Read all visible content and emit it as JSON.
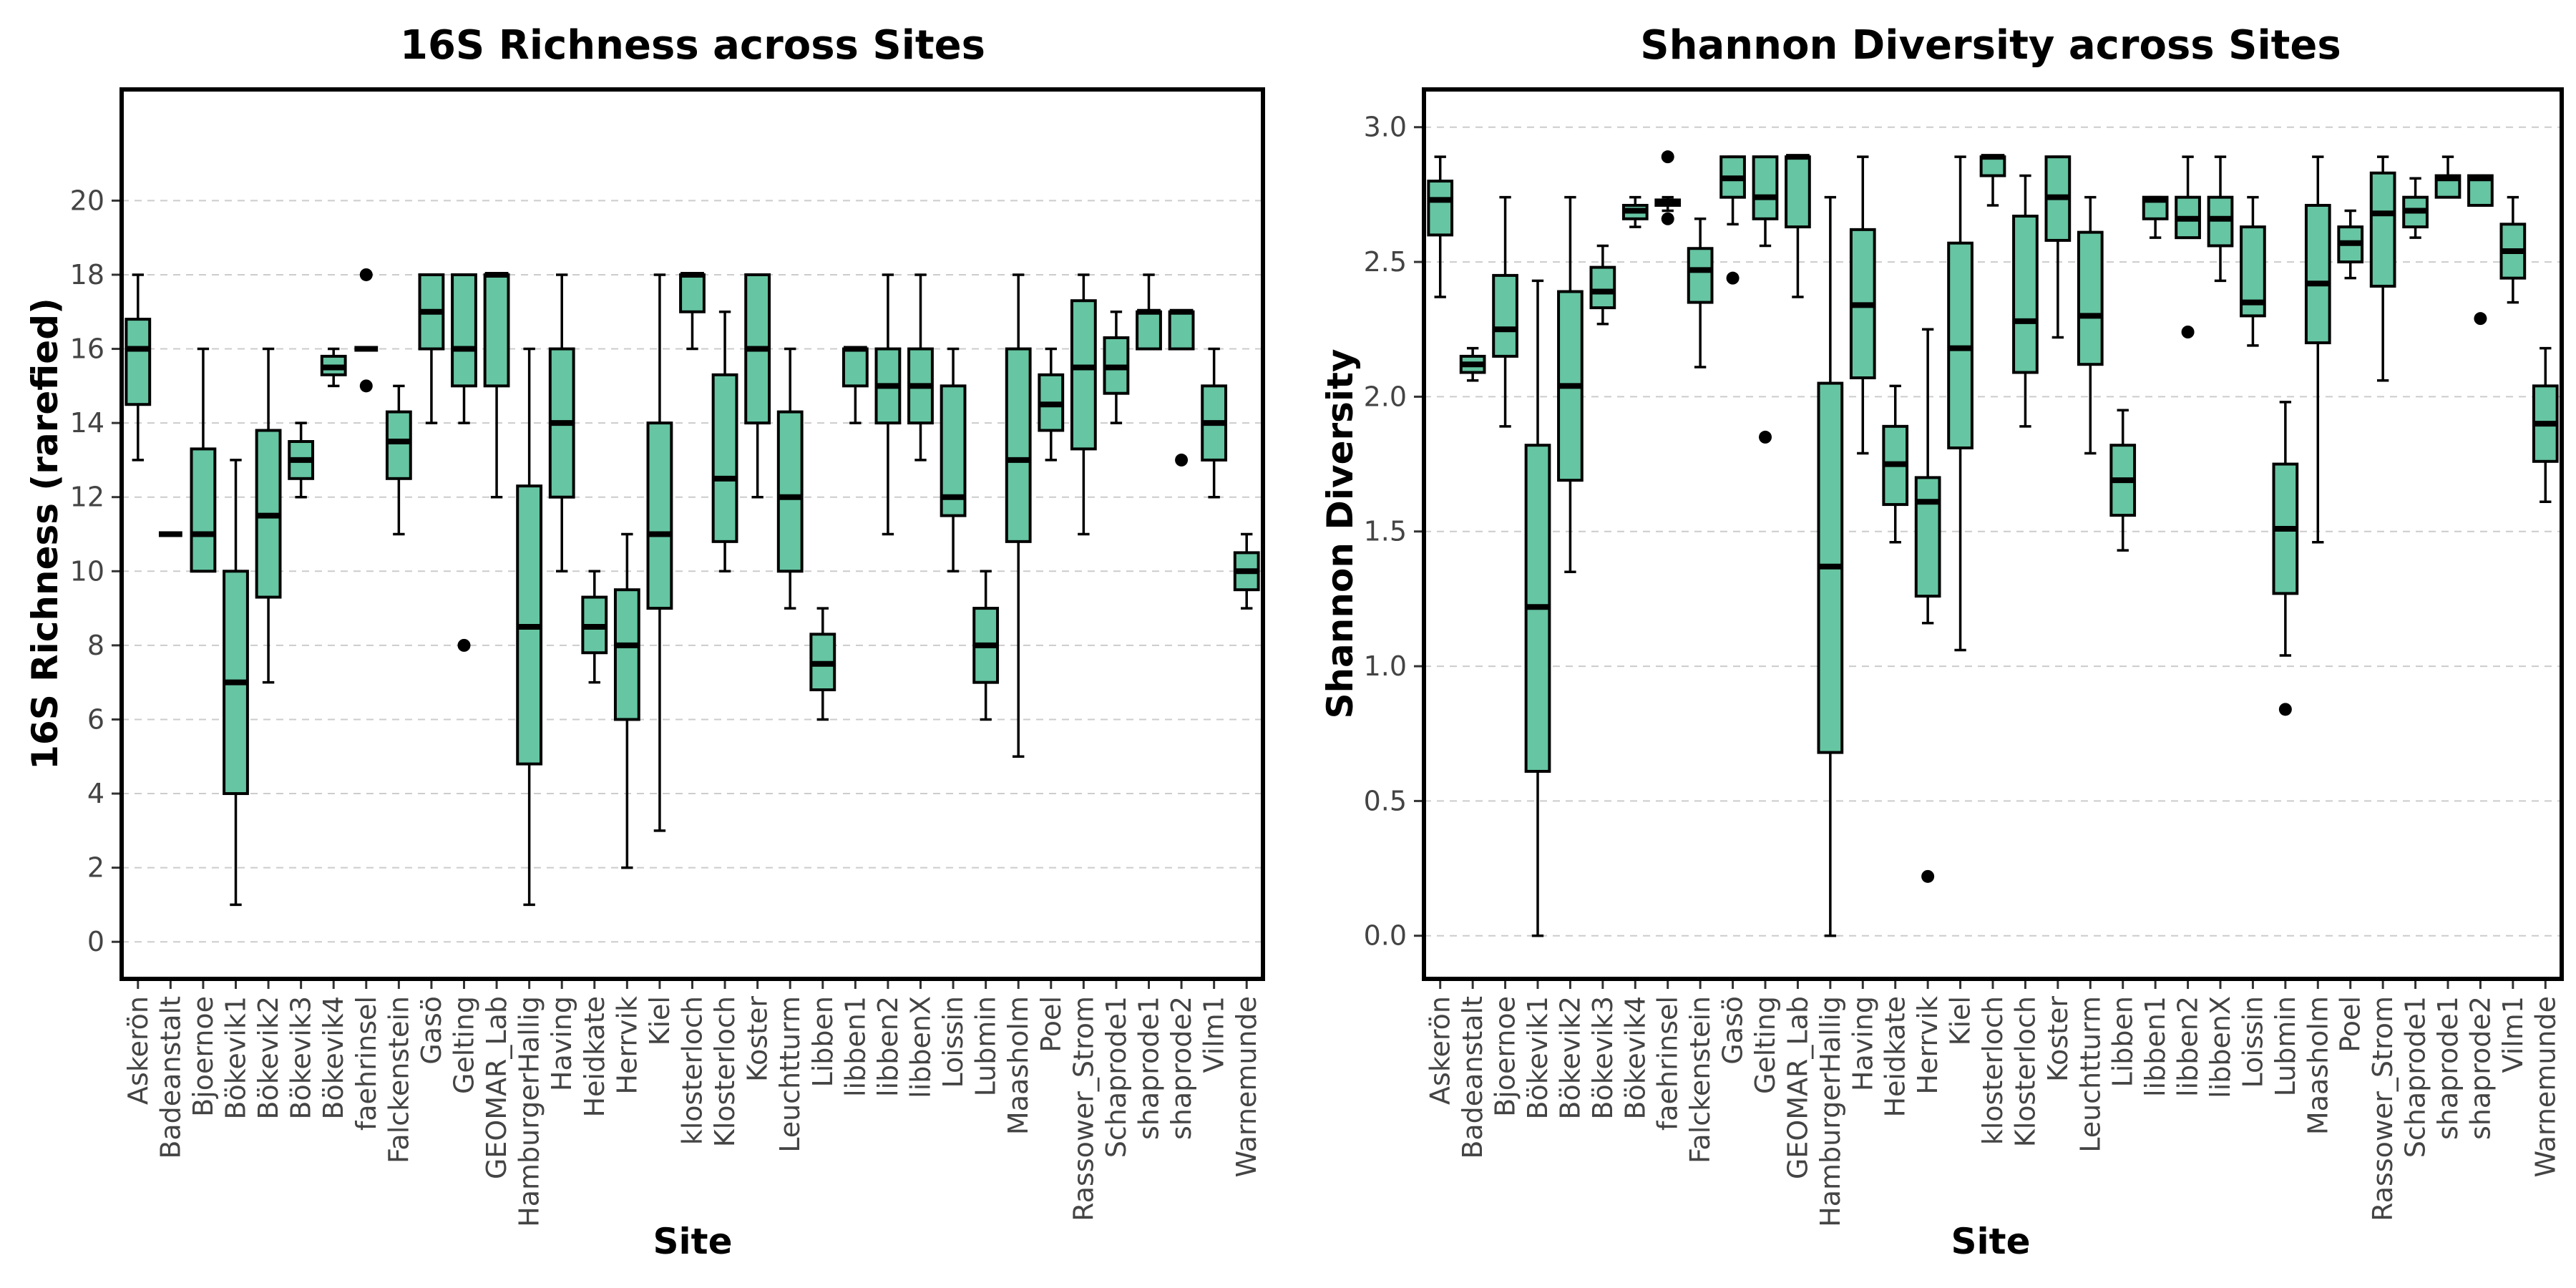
{
  "chart_data": [
    {
      "type": "boxplot",
      "title": "16S Richness across Sites",
      "xlabel": "Site",
      "ylabel": "16S Richness (rarefied)",
      "ylim": [
        -1,
        23
      ],
      "yticks": [
        0,
        2,
        4,
        6,
        8,
        10,
        12,
        14,
        16,
        18,
        20
      ],
      "ytick_labels": [
        "0",
        "2",
        "4",
        "6",
        "8",
        "10",
        "12",
        "14",
        "16",
        "18",
        "20"
      ],
      "grid": true,
      "box_color": "#66c5a2",
      "categories": [
        "Askerön",
        "Badeanstalt",
        "Bjoernoe",
        "Bökevik1",
        "Bökevik2",
        "Bökevik3",
        "Bökevik4",
        "faehrinsel",
        "Falckenstein",
        "Gasö",
        "Gelting",
        "GEOMAR_Lab",
        "HamburgerHallig",
        "Having",
        "Heidkate",
        "Herrvik",
        "Kiel",
        "klosterloch",
        "Klosterloch",
        "Koster",
        "Leuchtturm",
        "Libben",
        "libben1",
        "libben2",
        "libbenX",
        "Loissin",
        "Lubmin",
        "Maasholm",
        "Poel",
        "Rassower_Strom",
        "Schaprode1",
        "shaprode1",
        "shaprode2",
        "Vilm1",
        "Warnemunde"
      ],
      "boxes": [
        {
          "min": 13,
          "q1": 14.5,
          "median": 16,
          "q3": 16.8,
          "max": 18,
          "outliers": []
        },
        {
          "min": 11,
          "q1": 11,
          "median": 11,
          "q3": 11,
          "max": 11,
          "outliers": []
        },
        {
          "min": 10,
          "q1": 10,
          "median": 11,
          "q3": 13.3,
          "max": 16,
          "outliers": []
        },
        {
          "min": 1,
          "q1": 4,
          "median": 7,
          "q3": 10,
          "max": 13,
          "outliers": []
        },
        {
          "min": 7,
          "q1": 9.3,
          "median": 11.5,
          "q3": 13.8,
          "max": 16,
          "outliers": []
        },
        {
          "min": 12,
          "q1": 12.5,
          "median": 13,
          "q3": 13.5,
          "max": 14,
          "outliers": []
        },
        {
          "min": 15,
          "q1": 15.3,
          "median": 15.5,
          "q3": 15.8,
          "max": 16,
          "outliers": []
        },
        {
          "min": 16,
          "q1": 16,
          "median": 16,
          "q3": 16,
          "max": 16,
          "outliers": [
            18,
            15
          ]
        },
        {
          "min": 11,
          "q1": 12.5,
          "median": 13.5,
          "q3": 14.3,
          "max": 15,
          "outliers": []
        },
        {
          "min": 14,
          "q1": 16,
          "median": 17,
          "q3": 18,
          "max": 18,
          "outliers": []
        },
        {
          "min": 14,
          "q1": 15,
          "median": 16,
          "q3": 18,
          "max": 18,
          "outliers": [
            8
          ]
        },
        {
          "min": 12,
          "q1": 15,
          "median": 18,
          "q3": 18,
          "max": 18,
          "outliers": []
        },
        {
          "min": 1,
          "q1": 4.8,
          "median": 8.5,
          "q3": 12.3,
          "max": 16,
          "outliers": []
        },
        {
          "min": 10,
          "q1": 12,
          "median": 14,
          "q3": 16,
          "max": 18,
          "outliers": []
        },
        {
          "min": 7,
          "q1": 7.8,
          "median": 8.5,
          "q3": 9.3,
          "max": 10,
          "outliers": []
        },
        {
          "min": 2,
          "q1": 6,
          "median": 8,
          "q3": 9.5,
          "max": 11,
          "outliers": []
        },
        {
          "min": 3,
          "q1": 9,
          "median": 11,
          "q3": 14,
          "max": 18,
          "outliers": []
        },
        {
          "min": 16,
          "q1": 17,
          "median": 18,
          "q3": 18,
          "max": 18,
          "outliers": []
        },
        {
          "min": 10,
          "q1": 10.8,
          "median": 12.5,
          "q3": 15.3,
          "max": 17,
          "outliers": []
        },
        {
          "min": 12,
          "q1": 14,
          "median": 16,
          "q3": 18,
          "max": 18,
          "outliers": []
        },
        {
          "min": 9,
          "q1": 10,
          "median": 12,
          "q3": 14.3,
          "max": 16,
          "outliers": []
        },
        {
          "min": 6,
          "q1": 6.8,
          "median": 7.5,
          "q3": 8.3,
          "max": 9,
          "outliers": []
        },
        {
          "min": 14,
          "q1": 15,
          "median": 16,
          "q3": 16,
          "max": 16,
          "outliers": []
        },
        {
          "min": 11,
          "q1": 14,
          "median": 15,
          "q3": 16,
          "max": 18,
          "outliers": []
        },
        {
          "min": 13,
          "q1": 14,
          "median": 15,
          "q3": 16,
          "max": 18,
          "outliers": []
        },
        {
          "min": 10,
          "q1": 11.5,
          "median": 12,
          "q3": 15,
          "max": 16,
          "outliers": []
        },
        {
          "min": 6,
          "q1": 7,
          "median": 8,
          "q3": 9,
          "max": 10,
          "outliers": []
        },
        {
          "min": 5,
          "q1": 10.8,
          "median": 13,
          "q3": 16,
          "max": 18,
          "outliers": []
        },
        {
          "min": 13,
          "q1": 13.8,
          "median": 14.5,
          "q3": 15.3,
          "max": 16,
          "outliers": []
        },
        {
          "min": 11,
          "q1": 13.3,
          "median": 15.5,
          "q3": 17.3,
          "max": 18,
          "outliers": []
        },
        {
          "min": 14,
          "q1": 14.8,
          "median": 15.5,
          "q3": 16.3,
          "max": 17,
          "outliers": []
        },
        {
          "min": 16,
          "q1": 16,
          "median": 17,
          "q3": 17,
          "max": 18,
          "outliers": []
        },
        {
          "min": 16,
          "q1": 16,
          "median": 17,
          "q3": 17,
          "max": 17,
          "outliers": [
            13
          ]
        },
        {
          "min": 12,
          "q1": 13,
          "median": 14,
          "q3": 15,
          "max": 16,
          "outliers": []
        },
        {
          "min": 9,
          "q1": 9.5,
          "median": 10,
          "q3": 10.5,
          "max": 11,
          "outliers": []
        }
      ]
    },
    {
      "type": "boxplot",
      "title": "Shannon Diversity across Sites",
      "xlabel": "Site",
      "ylabel": "Shannon Diversity",
      "ylim": [
        -0.16,
        3.14
      ],
      "yticks": [
        0,
        0.5,
        1,
        1.5,
        2,
        2.5,
        3
      ],
      "ytick_labels": [
        "0.0",
        "0.5",
        "1.0",
        "1.5",
        "2.0",
        "2.5",
        "3.0"
      ],
      "grid": true,
      "box_color": "#66c5a2",
      "categories": [
        "Askerön",
        "Badeanstalt",
        "Bjoernoe",
        "Bökevik1",
        "Bökevik2",
        "Bökevik3",
        "Bökevik4",
        "faehrinsel",
        "Falckenstein",
        "Gasö",
        "Gelting",
        "GEOMAR_Lab",
        "HamburgerHallig",
        "Having",
        "Heidkate",
        "Herrvik",
        "Kiel",
        "klosterloch",
        "Klosterloch",
        "Koster",
        "Leuchtturm",
        "Libben",
        "libben1",
        "libben2",
        "libbenX",
        "Loissin",
        "Lubmin",
        "Maasholm",
        "Poel",
        "Rassower_Strom",
        "Schaprode1",
        "shaprode1",
        "shaprode2",
        "Vilm1",
        "Warnemunde"
      ],
      "boxes": [
        {
          "min": 2.37,
          "q1": 2.6,
          "median": 2.73,
          "q3": 2.8,
          "max": 2.89,
          "outliers": []
        },
        {
          "min": 2.06,
          "q1": 2.09,
          "median": 2.12,
          "q3": 2.15,
          "max": 2.18,
          "outliers": []
        },
        {
          "min": 1.89,
          "q1": 2.15,
          "median": 2.25,
          "q3": 2.45,
          "max": 2.74,
          "outliers": []
        },
        {
          "min": 0,
          "q1": 0.61,
          "median": 1.22,
          "q3": 1.82,
          "max": 2.43,
          "outliers": []
        },
        {
          "min": 1.35,
          "q1": 1.69,
          "median": 2.04,
          "q3": 2.39,
          "max": 2.74,
          "outliers": []
        },
        {
          "min": 2.27,
          "q1": 2.33,
          "median": 2.39,
          "q3": 2.48,
          "max": 2.56,
          "outliers": []
        },
        {
          "min": 2.63,
          "q1": 2.66,
          "median": 2.69,
          "q3": 2.71,
          "max": 2.74,
          "outliers": []
        },
        {
          "min": 2.69,
          "q1": 2.71,
          "median": 2.72,
          "q3": 2.73,
          "max": 2.74,
          "outliers": [
            2.89,
            2.66
          ]
        },
        {
          "min": 2.11,
          "q1": 2.35,
          "median": 2.47,
          "q3": 2.55,
          "max": 2.66,
          "outliers": []
        },
        {
          "min": 2.64,
          "q1": 2.74,
          "median": 2.81,
          "q3": 2.89,
          "max": 2.89,
          "outliers": [
            2.44
          ]
        },
        {
          "min": 2.56,
          "q1": 2.66,
          "median": 2.74,
          "q3": 2.89,
          "max": 2.89,
          "outliers": [
            1.85
          ]
        },
        {
          "min": 2.37,
          "q1": 2.63,
          "median": 2.89,
          "q3": 2.89,
          "max": 2.89,
          "outliers": []
        },
        {
          "min": 0,
          "q1": 0.68,
          "median": 1.37,
          "q3": 2.05,
          "max": 2.74,
          "outliers": []
        },
        {
          "min": 1.79,
          "q1": 2.07,
          "median": 2.34,
          "q3": 2.62,
          "max": 2.89,
          "outliers": []
        },
        {
          "min": 1.46,
          "q1": 1.6,
          "median": 1.75,
          "q3": 1.89,
          "max": 2.04,
          "outliers": []
        },
        {
          "min": 1.16,
          "q1": 1.26,
          "median": 1.61,
          "q3": 1.7,
          "max": 2.25,
          "outliers": [
            0.22
          ]
        },
        {
          "min": 1.06,
          "q1": 1.81,
          "median": 2.18,
          "q3": 2.57,
          "max": 2.89,
          "outliers": []
        },
        {
          "min": 2.71,
          "q1": 2.82,
          "median": 2.89,
          "q3": 2.89,
          "max": 2.89,
          "outliers": []
        },
        {
          "min": 1.89,
          "q1": 2.09,
          "median": 2.28,
          "q3": 2.67,
          "max": 2.82,
          "outliers": []
        },
        {
          "min": 2.22,
          "q1": 2.58,
          "median": 2.74,
          "q3": 2.89,
          "max": 2.89,
          "outliers": []
        },
        {
          "min": 1.79,
          "q1": 2.12,
          "median": 2.3,
          "q3": 2.61,
          "max": 2.74,
          "outliers": []
        },
        {
          "min": 1.43,
          "q1": 1.56,
          "median": 1.69,
          "q3": 1.82,
          "max": 1.95,
          "outliers": []
        },
        {
          "min": 2.59,
          "q1": 2.66,
          "median": 2.73,
          "q3": 2.74,
          "max": 2.74,
          "outliers": []
        },
        {
          "min": 2.59,
          "q1": 2.59,
          "median": 2.66,
          "q3": 2.74,
          "max": 2.89,
          "outliers": [
            2.24
          ]
        },
        {
          "min": 2.43,
          "q1": 2.56,
          "median": 2.66,
          "q3": 2.74,
          "max": 2.89,
          "outliers": []
        },
        {
          "min": 2.19,
          "q1": 2.3,
          "median": 2.35,
          "q3": 2.63,
          "max": 2.74,
          "outliers": []
        },
        {
          "min": 1.04,
          "q1": 1.27,
          "median": 1.51,
          "q3": 1.75,
          "max": 1.98,
          "outliers": [
            0.84
          ]
        },
        {
          "min": 1.46,
          "q1": 2.2,
          "median": 2.42,
          "q3": 2.71,
          "max": 2.89,
          "outliers": []
        },
        {
          "min": 2.44,
          "q1": 2.5,
          "median": 2.57,
          "q3": 2.63,
          "max": 2.69,
          "outliers": []
        },
        {
          "min": 2.06,
          "q1": 2.41,
          "median": 2.68,
          "q3": 2.83,
          "max": 2.89,
          "outliers": []
        },
        {
          "min": 2.59,
          "q1": 2.63,
          "median": 2.69,
          "q3": 2.74,
          "max": 2.81,
          "outliers": []
        },
        {
          "min": 2.74,
          "q1": 2.74,
          "median": 2.81,
          "q3": 2.82,
          "max": 2.89,
          "outliers": []
        },
        {
          "min": 2.71,
          "q1": 2.71,
          "median": 2.81,
          "q3": 2.82,
          "max": 2.82,
          "outliers": [
            2.29
          ]
        },
        {
          "min": 2.35,
          "q1": 2.44,
          "median": 2.54,
          "q3": 2.64,
          "max": 2.74,
          "outliers": []
        },
        {
          "min": 1.61,
          "q1": 1.76,
          "median": 1.9,
          "q3": 2.04,
          "max": 2.18,
          "outliers": []
        }
      ]
    }
  ]
}
